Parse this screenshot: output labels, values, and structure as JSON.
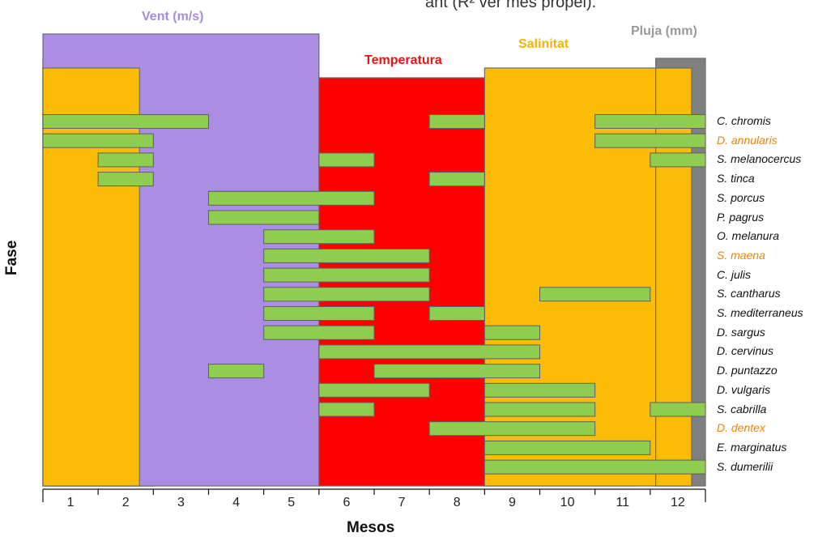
{
  "chart_data": {
    "type": "gantt",
    "truncated_caption": "ant (R² ver mes propel).",
    "xlabel": "Mesos",
    "ylabel": "Fase",
    "x_ticks": [
      "1",
      "2",
      "3",
      "4",
      "5",
      "6",
      "7",
      "8",
      "9",
      "10",
      "11",
      "12"
    ],
    "xlim": [
      0,
      12
    ],
    "zones": [
      {
        "name": "Salinitat",
        "color": "#fbbc05",
        "start": 0,
        "end": 2,
        "level": 0.86
      },
      {
        "name": "Pluja (mm)",
        "color": "#808080",
        "start": 0,
        "end": 2,
        "level": 0.88
      },
      {
        "name": "Vent (m/s)",
        "color": "#ab8ee3",
        "start": 0,
        "end": 5,
        "level": 0.93
      },
      {
        "name": "Temperatura",
        "color": "#ff0000",
        "start": 5,
        "end": 10.75,
        "level": 0.84
      },
      {
        "name": "Salinitat",
        "color": "#fbbc05",
        "start": 8,
        "end": 11.75,
        "level": 0.86
      },
      {
        "name": "Pluja (mm)",
        "color": "#808080",
        "start": 11.1,
        "end": 12,
        "level": 0.88
      }
    ],
    "zone_labels": [
      {
        "name": "Vent (m/s)",
        "color": "#ab8ee3"
      },
      {
        "name": "Temperatura",
        "color": "#ee1111"
      },
      {
        "name": "Salinitat",
        "color": "#f5b400"
      },
      {
        "name": "Pluja (mm)",
        "color": "#9a9a9a"
      }
    ],
    "bar_color": "#8fcd50",
    "species": [
      {
        "name": "C. chromis",
        "highlight": false,
        "periods": [
          [
            0,
            3
          ],
          [
            7,
            8
          ],
          [
            10,
            12
          ]
        ]
      },
      {
        "name": "D. annularis",
        "highlight": true,
        "periods": [
          [
            0,
            2
          ],
          [
            10,
            12
          ]
        ]
      },
      {
        "name": "S. melanocercus",
        "highlight": false,
        "periods": [
          [
            1,
            2
          ],
          [
            5,
            6
          ],
          [
            11,
            12
          ]
        ]
      },
      {
        "name": "S. tinca",
        "highlight": false,
        "periods": [
          [
            1,
            2
          ],
          [
            7,
            8
          ]
        ]
      },
      {
        "name": "S. porcus",
        "highlight": false,
        "periods": [
          [
            3,
            6
          ]
        ]
      },
      {
        "name": "P. pagrus",
        "highlight": false,
        "periods": [
          [
            3,
            5
          ]
        ]
      },
      {
        "name": "O. melanura",
        "highlight": false,
        "periods": [
          [
            4,
            6
          ]
        ]
      },
      {
        "name": "S. maena",
        "highlight": true,
        "periods": [
          [
            4,
            7
          ]
        ]
      },
      {
        "name": "C. julis",
        "highlight": false,
        "periods": [
          [
            4,
            7
          ]
        ]
      },
      {
        "name": "S. cantharus",
        "highlight": false,
        "periods": [
          [
            4,
            7
          ],
          [
            9,
            11
          ]
        ]
      },
      {
        "name": "S. mediterraneus",
        "highlight": false,
        "periods": [
          [
            4,
            6
          ],
          [
            7,
            8
          ]
        ]
      },
      {
        "name": "D. sargus",
        "highlight": false,
        "periods": [
          [
            4,
            6
          ],
          [
            8,
            9
          ]
        ]
      },
      {
        "name": "D. cervinus",
        "highlight": false,
        "periods": [
          [
            5,
            9
          ]
        ]
      },
      {
        "name": "D. puntazzo",
        "highlight": false,
        "periods": [
          [
            3,
            4
          ],
          [
            6,
            9
          ]
        ]
      },
      {
        "name": "D. vulgaris",
        "highlight": false,
        "periods": [
          [
            5,
            7
          ],
          [
            8,
            10
          ]
        ]
      },
      {
        "name": "S. cabrilla",
        "highlight": false,
        "periods": [
          [
            5,
            6
          ],
          [
            8,
            10
          ],
          [
            11,
            12
          ]
        ]
      },
      {
        "name": "D. dentex",
        "highlight": true,
        "periods": [
          [
            7,
            10
          ]
        ]
      },
      {
        "name": "E. marginatus",
        "highlight": false,
        "periods": [
          [
            8,
            11
          ]
        ]
      },
      {
        "name": "S. dumerilii",
        "highlight": false,
        "periods": [
          [
            8,
            12
          ]
        ]
      }
    ]
  }
}
